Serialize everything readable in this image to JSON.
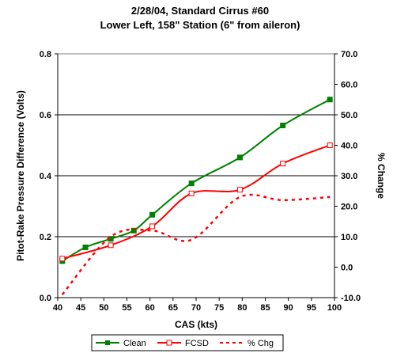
{
  "chart_data": {
    "type": "line",
    "title": "2/28/04, Standard Cirrus #60",
    "subtitle": "Lower Left, 158\" Station (6\" from aileron)",
    "xlabel": "CAS (kts)",
    "ylabel": "Pitot-Rake Pressure Difference (Volts)",
    "y2label": "% Change",
    "xlim": [
      40,
      100
    ],
    "ylim": [
      0,
      0.8
    ],
    "y2lim": [
      -10,
      70
    ],
    "x_ticks": [
      "40",
      "45",
      "50",
      "55",
      "60",
      "65",
      "70",
      "75",
      "80",
      "85",
      "90",
      "95",
      "100"
    ],
    "y_ticks": [
      "0.0",
      "0.2",
      "0.4",
      "0.6",
      "0.8"
    ],
    "y2_ticks": [
      "-10.0",
      "0.0",
      "10.0",
      "20.0",
      "30.0",
      "40.0",
      "50.0",
      "60.0",
      "70.0"
    ],
    "grid": "horizontal major lines at 0.2, 0.4, 0.6",
    "legend_position": "bottom",
    "series": [
      {
        "name": "Clean",
        "color": "#008000",
        "axis": "left",
        "style": "solid",
        "marker": "filled-square",
        "x": [
          41,
          46,
          51.5,
          56.5,
          60.5,
          69,
          79.5,
          88.8,
          99
        ],
        "values": [
          0.12,
          0.165,
          0.193,
          0.22,
          0.272,
          0.375,
          0.46,
          0.565,
          0.65
        ]
      },
      {
        "name": "FCSD",
        "color": "#ff0000",
        "axis": "left",
        "style": "solid",
        "marker": "open-square",
        "x": [
          41,
          51.5,
          60.5,
          69,
          79.5,
          88.8,
          99
        ],
        "values": [
          0.128,
          0.172,
          0.234,
          0.342,
          0.354,
          0.44,
          0.5
        ]
      },
      {
        "name": "% Chg",
        "color": "#ff0000",
        "axis": "right",
        "style": "dashed",
        "marker": "none",
        "x": [
          41,
          51.5,
          60.5,
          69,
          79.5,
          88.8,
          99
        ],
        "values": [
          -9,
          10,
          12,
          9,
          23,
          22,
          23
        ]
      }
    ]
  }
}
